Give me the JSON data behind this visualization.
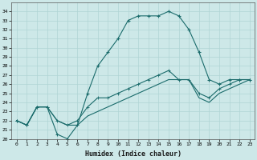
{
  "xlabel": "Humidex (Indice chaleur)",
  "bg_color": "#cde8e8",
  "grid_color": "#b0d4d4",
  "line_color": "#1a6b6b",
  "xlim": [
    -0.5,
    23.5
  ],
  "ylim": [
    20,
    35
  ],
  "yticks": [
    20,
    21,
    22,
    23,
    24,
    25,
    26,
    27,
    28,
    29,
    30,
    31,
    32,
    33,
    34
  ],
  "xticks": [
    0,
    1,
    2,
    3,
    4,
    5,
    6,
    7,
    8,
    9,
    10,
    11,
    12,
    13,
    14,
    15,
    16,
    17,
    18,
    19,
    20,
    21,
    22,
    23
  ],
  "main_x": [
    0,
    1,
    2,
    3,
    4,
    5,
    6,
    7,
    8,
    9,
    10,
    11,
    12,
    13,
    14,
    15,
    16,
    17,
    18,
    19,
    20,
    21,
    22,
    23
  ],
  "main_y": [
    22,
    21.5,
    23.5,
    23.5,
    20.5,
    20.0,
    21.5,
    25.0,
    28.0,
    29.5,
    31.0,
    33.0,
    33.5,
    33.5,
    33.5,
    34.0,
    33.5,
    32.0,
    29.5,
    26.5,
    26.0,
    26.5,
    26.5,
    26.5
  ],
  "line2_x": [
    0,
    1,
    2,
    3,
    4,
    5,
    6,
    7,
    8,
    9,
    10,
    11,
    12,
    13,
    14,
    15,
    16,
    17,
    18,
    19,
    20,
    21,
    22,
    23
  ],
  "line2_y": [
    22,
    21.5,
    23.5,
    23.5,
    22.0,
    21.5,
    22.0,
    23.5,
    24.5,
    24.5,
    25.0,
    25.5,
    26.0,
    26.5,
    27.0,
    27.5,
    26.5,
    26.5,
    25.0,
    24.5,
    25.5,
    26.0,
    26.5,
    26.5
  ],
  "line3_x": [
    0,
    1,
    2,
    3,
    4,
    5,
    6,
    7,
    8,
    9,
    10,
    11,
    12,
    13,
    14,
    15,
    16,
    17,
    18,
    19,
    20,
    21,
    22,
    23
  ],
  "line3_y": [
    22,
    21.5,
    23.5,
    23.5,
    22.0,
    21.5,
    21.5,
    22.5,
    23.0,
    23.5,
    24.0,
    24.5,
    25.0,
    25.5,
    26.0,
    26.5,
    26.5,
    26.5,
    24.5,
    24.0,
    25.0,
    25.5,
    26.0,
    26.5
  ]
}
